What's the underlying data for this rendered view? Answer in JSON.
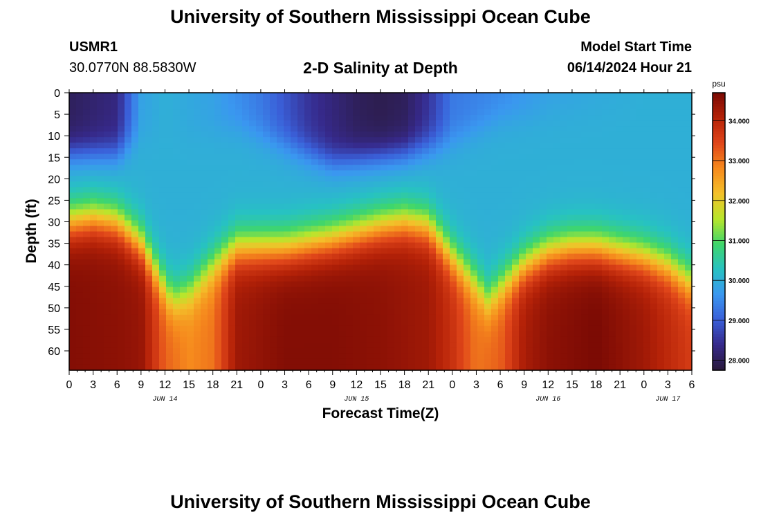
{
  "header": {
    "title_top": "University of Southern Mississippi Ocean Cube",
    "station_id": "USMR1",
    "station_coords": "30.0770N  88.5830W",
    "plot_title": "2-D Salinity at Depth",
    "model_start_label": "Model Start Time",
    "model_start_value": "06/14/2024 Hour 21"
  },
  "footer": {
    "title_bottom": "University of Southern Mississippi Ocean Cube"
  },
  "colors": {
    "ramp": [
      "#2a1a3c",
      "#36298a",
      "#3a5fd8",
      "#3a97f0",
      "#27c2c2",
      "#3fd66b",
      "#b8e62c",
      "#f4c02a",
      "#f68a1d",
      "#e0461a",
      "#b52208",
      "#7a0a04"
    ]
  },
  "chart_data": {
    "type": "heatmap",
    "title": "2-D Salinity at Depth",
    "xlabel": "Forecast Time(Z)",
    "ylabel": "Depth (ft)",
    "colorbar_unit": "psu",
    "colorbar_ticks": [
      "34.000",
      "33.000",
      "32.000",
      "31.000",
      "30.000",
      "29.000",
      "28.000"
    ],
    "colorbar_tick_values": [
      34,
      33,
      32,
      31,
      30,
      29,
      28
    ],
    "colorbar_range": [
      27.75,
      34.7
    ],
    "x_range_hours": [
      0,
      78
    ],
    "x_ticks": [
      "0",
      "3",
      "6",
      "9",
      "12",
      "15",
      "18",
      "21",
      "0",
      "3",
      "6",
      "9",
      "12",
      "15",
      "18",
      "21",
      "0",
      "3",
      "6",
      "9",
      "12",
      "15",
      "18",
      "21",
      "0",
      "3",
      "6"
    ],
    "x_tick_hours": [
      0,
      3,
      6,
      9,
      12,
      15,
      18,
      21,
      24,
      27,
      30,
      33,
      36,
      39,
      42,
      45,
      48,
      51,
      54,
      57,
      60,
      63,
      66,
      69,
      72,
      75,
      78
    ],
    "date_labels": [
      "JUN 14",
      "JUN 15",
      "JUN 16",
      "JUN 17"
    ],
    "date_label_hours": [
      12,
      36,
      60,
      75
    ],
    "y_ticks": [
      "0",
      "5",
      "10",
      "15",
      "20",
      "25",
      "30",
      "35",
      "40",
      "45",
      "50",
      "55",
      "60"
    ],
    "y_tick_values": [
      0,
      5,
      10,
      15,
      20,
      25,
      30,
      35,
      40,
      45,
      50,
      55,
      60
    ],
    "y_range_ft": [
      0,
      64.5
    ],
    "halocline_depth_ft": {
      "hours": [
        0,
        3,
        6,
        9,
        12,
        13,
        15,
        18,
        21,
        27,
        33,
        39,
        42,
        45,
        48,
        51,
        52.5,
        54,
        57,
        60,
        63,
        66,
        69,
        72,
        75,
        78
      ],
      "values": [
        30,
        29,
        30,
        35,
        45,
        48,
        46,
        40,
        36,
        36,
        34,
        31,
        30,
        31,
        38,
        44,
        48,
        45,
        40,
        37,
        36,
        36,
        37,
        38,
        40,
        44
      ]
    },
    "surface_salinity_psu": {
      "hours": [
        0,
        6,
        9,
        12,
        18,
        24,
        30,
        36,
        39,
        42,
        45,
        48,
        54,
        60,
        66,
        72,
        78
      ],
      "values": [
        28.0,
        28.3,
        29.8,
        30.0,
        29.8,
        29.3,
        28.5,
        28.0,
        27.9,
        28.0,
        28.5,
        29.3,
        29.5,
        29.8,
        29.9,
        30.0,
        30.0
      ]
    },
    "surface_layer_base_ft": {
      "hours": [
        0,
        6,
        9,
        15,
        21,
        27,
        33,
        42,
        48,
        54,
        66,
        78
      ],
      "values": [
        14,
        14,
        10,
        10,
        8,
        12,
        16,
        14,
        11,
        6,
        4,
        3
      ]
    },
    "bottom_salinity_psu": {
      "hours": [
        0,
        6,
        9,
        12,
        15,
        18,
        21,
        27,
        33,
        39,
        45,
        48,
        51,
        54,
        57,
        60,
        66,
        72,
        78
      ],
      "values": [
        34.6,
        34.5,
        34.4,
        33.2,
        32.8,
        33.0,
        34.3,
        34.6,
        34.6,
        34.5,
        34.3,
        33.8,
        33.0,
        33.2,
        34.2,
        34.5,
        34.7,
        34.3,
        33.6
      ]
    }
  }
}
